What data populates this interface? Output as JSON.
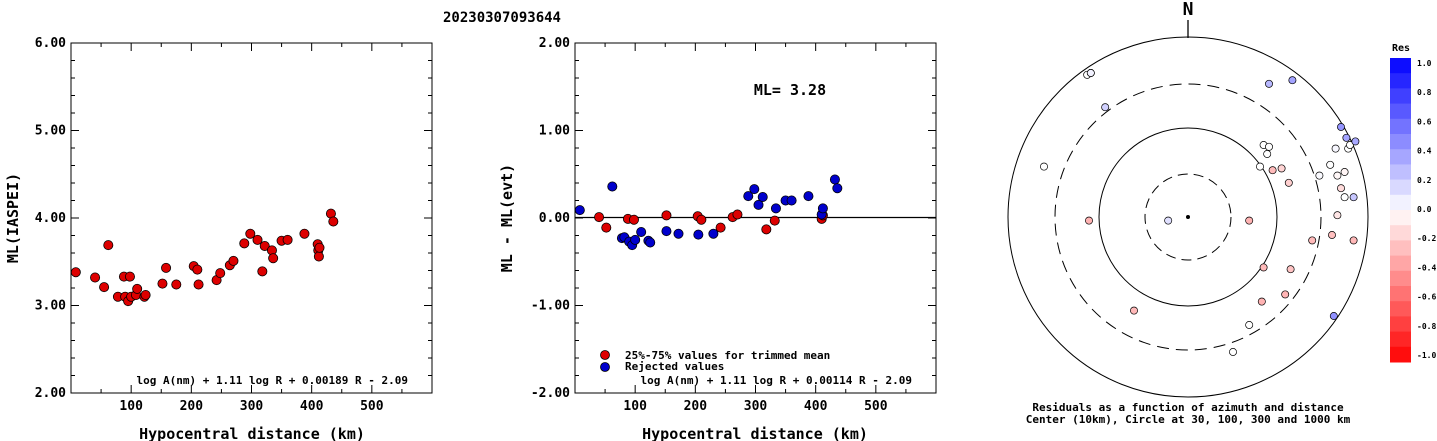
{
  "title": "20230307093644",
  "chart_data": [
    {
      "type": "scatter",
      "xlabel": "Hypocentral distance (km)",
      "ylabel": "ML(IASPEI)",
      "xlim": [
        0,
        600
      ],
      "ylim": [
        2.0,
        6.0
      ],
      "x_ticks": [
        "100",
        "200",
        "300",
        "400",
        "500"
      ],
      "y_ticks": [
        "2.00",
        "3.00",
        "4.00",
        "5.00",
        "6.00"
      ],
      "formula": "log A(nm) + 1.11 log R + 0.00189 R - 2.09",
      "marker_color": "#dd0000",
      "points": [
        [
          8,
          3.38
        ],
        [
          40,
          3.32
        ],
        [
          55,
          3.21
        ],
        [
          62,
          3.69
        ],
        [
          78,
          3.1
        ],
        [
          88,
          3.33
        ],
        [
          90,
          3.1
        ],
        [
          95,
          3.05
        ],
        [
          98,
          3.33
        ],
        [
          100,
          3.1
        ],
        [
          108,
          3.12
        ],
        [
          110,
          3.19
        ],
        [
          122,
          3.1
        ],
        [
          124,
          3.12
        ],
        [
          152,
          3.25
        ],
        [
          158,
          3.43
        ],
        [
          175,
          3.24
        ],
        [
          204,
          3.45
        ],
        [
          210,
          3.41
        ],
        [
          212,
          3.24
        ],
        [
          242,
          3.29
        ],
        [
          248,
          3.37
        ],
        [
          264,
          3.46
        ],
        [
          270,
          3.51
        ],
        [
          288,
          3.71
        ],
        [
          298,
          3.82
        ],
        [
          310,
          3.75
        ],
        [
          318,
          3.39
        ],
        [
          322,
          3.68
        ],
        [
          334,
          3.63
        ],
        [
          336,
          3.54
        ],
        [
          350,
          3.74
        ],
        [
          360,
          3.75
        ],
        [
          388,
          3.82
        ],
        [
          410,
          3.7
        ],
        [
          411,
          3.63
        ],
        [
          412,
          3.56
        ],
        [
          413,
          3.66
        ],
        [
          432,
          4.05
        ],
        [
          436,
          3.96
        ]
      ]
    },
    {
      "type": "scatter",
      "xlabel": "Hypocentral distance (km)",
      "ylabel": "ML - ML(evt)",
      "xlim": [
        0,
        600
      ],
      "ylim": [
        -2.0,
        2.0
      ],
      "x_ticks": [
        "100",
        "200",
        "300",
        "400",
        "500"
      ],
      "y_ticks": [
        "-2.00",
        "-1.00",
        "0.00",
        "1.00",
        "2.00"
      ],
      "ml_text": "ML= 3.28",
      "formula": "log A(nm) + 1.11 log R + 0.00114 R - 2.09",
      "legend": [
        "25%-75% values for trimmed mean",
        "Rejected values"
      ],
      "legend_colors": [
        "#dd0000",
        "#0000cc"
      ],
      "trimmed_points": [
        [
          40,
          0.01
        ],
        [
          52,
          -0.11
        ],
        [
          88,
          -0.01
        ],
        [
          98,
          -0.02
        ],
        [
          152,
          0.03
        ],
        [
          204,
          0.02
        ],
        [
          210,
          -0.02
        ],
        [
          242,
          -0.11
        ],
        [
          262,
          0.01
        ],
        [
          270,
          0.04
        ],
        [
          318,
          -0.13
        ],
        [
          332,
          -0.03
        ],
        [
          410,
          -0.01
        ],
        [
          412,
          0.03
        ]
      ],
      "rejected_points": [
        [
          8,
          0.09
        ],
        [
          62,
          0.36
        ],
        [
          78,
          -0.23
        ],
        [
          82,
          -0.22
        ],
        [
          90,
          -0.27
        ],
        [
          95,
          -0.31
        ],
        [
          100,
          -0.25
        ],
        [
          110,
          -0.16
        ],
        [
          122,
          -0.26
        ],
        [
          125,
          -0.28
        ],
        [
          152,
          -0.15
        ],
        [
          172,
          -0.18
        ],
        [
          205,
          -0.19
        ],
        [
          230,
          -0.18
        ],
        [
          288,
          0.25
        ],
        [
          298,
          0.33
        ],
        [
          305,
          0.15
        ],
        [
          312,
          0.24
        ],
        [
          334,
          0.11
        ],
        [
          350,
          0.2
        ],
        [
          360,
          0.2
        ],
        [
          388,
          0.25
        ],
        [
          410,
          0.04
        ],
        [
          412,
          0.11
        ],
        [
          432,
          0.44
        ],
        [
          436,
          0.34
        ]
      ]
    },
    {
      "type": "scatter",
      "north_label": "N",
      "caption_line1": "Residuals as a function of azimuth and distance",
      "caption_line2": "Center (10km), Circle at 30, 100, 300 and 1000 km",
      "colorbar_title": "Res",
      "colorbar_ticks": [
        "1.0",
        "0.8",
        "0.6",
        "0.4",
        "0.2",
        "0.0",
        "-0.2",
        "-0.4",
        "-0.6",
        "-0.8",
        "-1.0"
      ],
      "points_unit_circle": [
        [
          -0.56,
          0.79,
          0.0
        ],
        [
          -0.54,
          0.8,
          0.0
        ],
        [
          -0.54,
          0.8,
          0.05
        ],
        [
          -0.46,
          0.61,
          0.18
        ],
        [
          0.45,
          0.74,
          0.28
        ],
        [
          0.58,
          0.76,
          0.36
        ],
        [
          0.85,
          0.5,
          0.42
        ],
        [
          0.88,
          0.44,
          0.36
        ],
        [
          0.89,
          0.38,
          0.0
        ],
        [
          0.9,
          0.4,
          0.0
        ],
        [
          0.93,
          0.42,
          0.34
        ],
        [
          0.82,
          0.38,
          0.03
        ],
        [
          0.42,
          0.4,
          0.0
        ],
        [
          0.45,
          0.39,
          0.0
        ],
        [
          0.44,
          0.35,
          0.0
        ],
        [
          0.79,
          0.29,
          0.0
        ],
        [
          0.73,
          0.23,
          0.02
        ],
        [
          0.83,
          0.23,
          -0.03
        ],
        [
          0.87,
          0.25,
          -0.04
        ],
        [
          0.56,
          0.19,
          -0.19
        ],
        [
          0.52,
          0.27,
          -0.17
        ],
        [
          0.85,
          0.16,
          -0.14
        ],
        [
          0.4,
          0.28,
          0.0
        ],
        [
          0.47,
          0.26,
          -0.27
        ],
        [
          0.87,
          0.11,
          0.0
        ],
        [
          0.92,
          0.11,
          0.22
        ],
        [
          0.83,
          0.01,
          -0.1
        ],
        [
          0.92,
          -0.13,
          -0.28
        ],
        [
          0.8,
          -0.1,
          -0.25
        ],
        [
          0.69,
          -0.13,
          -0.27
        ],
        [
          0.34,
          -0.02,
          -0.3
        ],
        [
          -0.11,
          -0.02,
          0.12
        ],
        [
          -0.55,
          -0.02,
          -0.3
        ],
        [
          0.57,
          -0.29,
          -0.23
        ],
        [
          0.42,
          -0.28,
          -0.27
        ],
        [
          0.54,
          -0.43,
          -0.29
        ],
        [
          0.41,
          -0.47,
          -0.3
        ],
        [
          -0.3,
          -0.52,
          -0.28
        ],
        [
          0.34,
          -0.6,
          0.0
        ],
        [
          0.81,
          -0.55,
          0.43
        ],
        [
          0.25,
          -0.75,
          0.0
        ],
        [
          -0.8,
          0.28,
          0.0
        ]
      ]
    }
  ]
}
